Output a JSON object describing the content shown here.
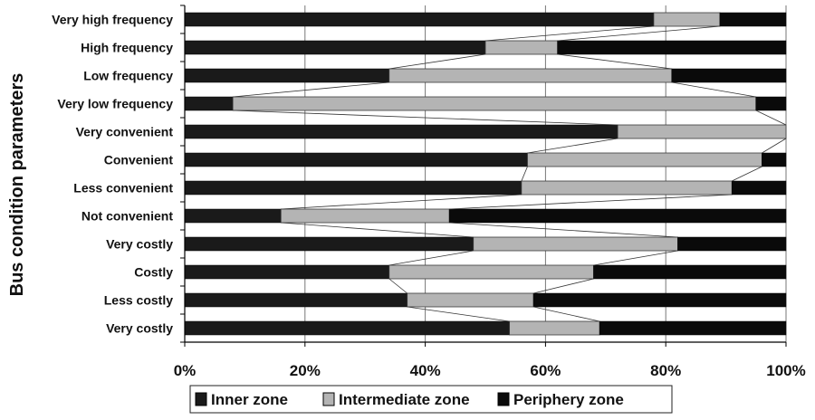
{
  "chart_data": {
    "type": "bar",
    "orientation": "horizontal",
    "stacked": "100%",
    "categories": [
      "Very high frequency",
      "High frequency",
      "Low frequency",
      "Very low frequency",
      "Very convenient",
      "Convenient",
      "Less convenient",
      "Not convenient",
      "Very costly",
      "Costly",
      "Less costly",
      "Very costly"
    ],
    "series": [
      {
        "name": "Inner zone",
        "values": [
          78,
          50,
          34,
          8,
          72,
          57,
          56,
          16,
          48,
          34,
          37,
          54
        ]
      },
      {
        "name": "Intermediate zone",
        "values": [
          11,
          12,
          47,
          87,
          28,
          39,
          35,
          28,
          34,
          34,
          21,
          15
        ]
      },
      {
        "name": "Periphery zone",
        "values": [
          11,
          38,
          19,
          5,
          0,
          4,
          9,
          56,
          18,
          32,
          42,
          31
        ]
      }
    ],
    "series_colors": [
      "#1a1a1a",
      "#b4b4b4",
      "#0a0a0a"
    ],
    "xlabel": "",
    "ylabel": "Bus condition parameters",
    "xlim": [
      0,
      100
    ],
    "xticks": [
      "0%",
      "20%",
      "40%",
      "60%",
      "80%",
      "100%"
    ],
    "grid": "vertical",
    "legend_position": "bottom",
    "series_lines": true
  }
}
